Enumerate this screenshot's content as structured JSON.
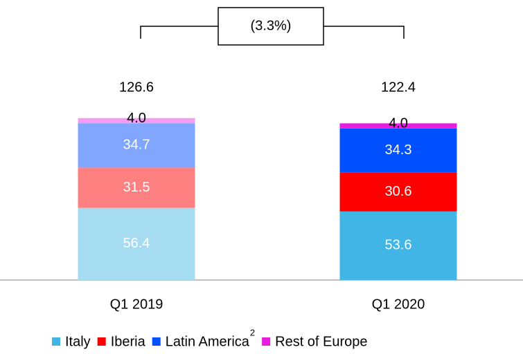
{
  "chart_data": {
    "type": "stacked_bar",
    "categories": [
      "Q1 2019",
      "Q1 2020"
    ],
    "series": [
      {
        "name": "Italy",
        "colors": [
          "#a6dcf2",
          "#41b6e6"
        ],
        "values": [
          56.4,
          53.6
        ]
      },
      {
        "name": "Iberia",
        "colors": [
          "#ff8080",
          "#ff0000"
        ],
        "values": [
          31.5,
          30.6
        ]
      },
      {
        "name": "Latin America",
        "name_superscript": "2",
        "colors": [
          "#80a6ff",
          "#0050ff"
        ],
        "values": [
          34.7,
          34.3
        ]
      },
      {
        "name": "Rest of Europe",
        "colors": [
          "#f59cf0",
          "#e61ede"
        ],
        "values": [
          4,
          4
        ],
        "value_labels": [
          "4.0",
          "4.0"
        ]
      }
    ],
    "totals": [
      126.6,
      122.4
    ],
    "annotation": "(3.3%)",
    "ylim": [
      0,
      140
    ]
  }
}
